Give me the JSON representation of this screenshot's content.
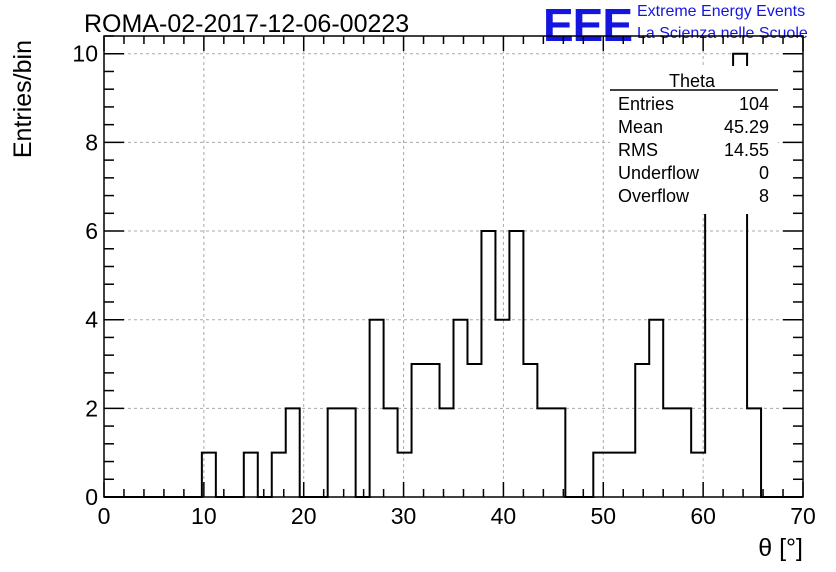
{
  "header": {
    "title": "ROMA-02-2017-12-06-00223",
    "logo_text": "EEE",
    "logo_line1": "Extreme Energy Events",
    "logo_line2": "La Scienza nelle Scuole",
    "logo_color": "#1515e0"
  },
  "stats_box": {
    "title": "Theta",
    "rows": [
      {
        "label": "Entries",
        "value": "104"
      },
      {
        "label": "Mean",
        "value": "45.29"
      },
      {
        "label": "RMS",
        "value": "14.55"
      },
      {
        "label": "Underflow",
        "value": "0"
      },
      {
        "label": "Overflow",
        "value": "8"
      }
    ]
  },
  "chart_data": {
    "type": "histogram",
    "title": "ROMA-02-2017-12-06-00223",
    "xlabel": "θ [°]",
    "ylabel": "Entries/bin",
    "xlim": [
      0,
      70
    ],
    "ylim": [
      0,
      10.4
    ],
    "bin_width": 1.4,
    "grid": true,
    "x_ticks": [
      0,
      10,
      20,
      30,
      40,
      50,
      60,
      70
    ],
    "y_ticks": [
      0,
      2,
      4,
      6,
      8,
      10
    ],
    "bin_edges_start": 0,
    "values": [
      0,
      0,
      0,
      0,
      0,
      0,
      0,
      1,
      0,
      0,
      1,
      0,
      1,
      2,
      0,
      0,
      2,
      2,
      0,
      4,
      2,
      1,
      3,
      3,
      2,
      4,
      3,
      6,
      4,
      6,
      3,
      2,
      2,
      0,
      0,
      1,
      1,
      1,
      3,
      4,
      2,
      2,
      1,
      7,
      8,
      10,
      2,
      0,
      0,
      0
    ]
  }
}
